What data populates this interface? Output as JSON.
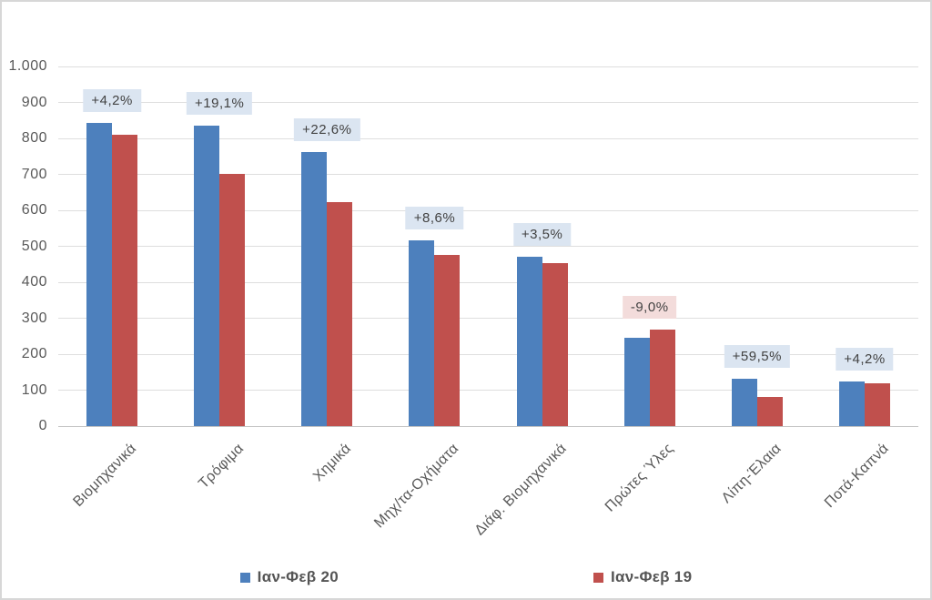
{
  "chart_data": {
    "type": "bar",
    "title": "",
    "categories": [
      "Βιομηχανικά",
      "Τρόφιμα",
      "Χημικά",
      "Μηχ/τα-Οχήματα",
      "Διάφ. Βιομηχανικά",
      "Πρώτες Ύλες",
      "Λίπη-Έλαια",
      "Ποτά-Καπνά"
    ],
    "series": [
      {
        "name": "Ιαν-Φεβ 20",
        "color": "#4d80bd",
        "values": [
          843,
          835,
          763,
          517,
          470,
          245,
          131,
          124
        ]
      },
      {
        "name": "Ιαν-Φεβ 19",
        "color": "#c0504d",
        "values": [
          809,
          701,
          622,
          476,
          454,
          269,
          82,
          119
        ]
      }
    ],
    "change_labels": [
      {
        "text": "+4,2%",
        "sentiment": "positive"
      },
      {
        "text": "+19,1%",
        "sentiment": "positive"
      },
      {
        "text": "+22,6%",
        "sentiment": "positive"
      },
      {
        "text": "+8,6%",
        "sentiment": "positive"
      },
      {
        "text": "+3,5%",
        "sentiment": "positive"
      },
      {
        "text": "-9,0%",
        "sentiment": "negative"
      },
      {
        "text": "+59,5%",
        "sentiment": "positive"
      },
      {
        "text": "+4,2%",
        "sentiment": "positive"
      }
    ],
    "xlabel": "",
    "ylabel": "",
    "ylim": [
      0,
      1000
    ],
    "y_tick_step": 100,
    "y_tick_labels": [
      "0",
      "100",
      "200",
      "300",
      "400",
      "500",
      "600",
      "700",
      "800",
      "900",
      "1.000"
    ],
    "grid": true,
    "legend_position": "bottom",
    "styles": {
      "positive_label_bg": "#dbe5f1",
      "negative_label_bg": "#f3dcdb",
      "label_text": "#424242",
      "axis_text": "#595959",
      "gridline": "#dedede",
      "axis_line": "#c3c3c3"
    }
  }
}
